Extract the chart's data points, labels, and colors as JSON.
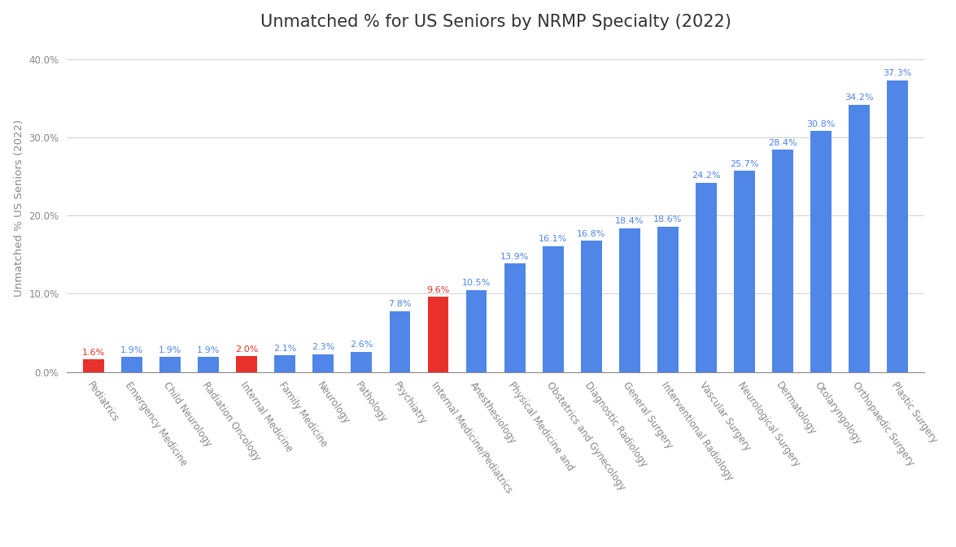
{
  "title": "Unmatched % for US Seniors by NRMP Specialty (2022)",
  "ylabel": "Unmatched % US Seniors (2022)",
  "categories": [
    "Pediatrics",
    "Emergency Medicine",
    "Child Neurology",
    "Radiation Oncology",
    "Internal Medicine",
    "Family Medicine",
    "Neurology",
    "Pathology",
    "Psychiatry",
    "Internal Medicine/Pediatrics",
    "Anesthesiology",
    "Physical Medicine and",
    "Obstetrics and Gynecology",
    "Diagnostic Radiology",
    "General Surgery",
    "Interventional Radiology",
    "Vascular Surgery",
    "Neurological Surgery",
    "Dermatology",
    "Otolaryngology",
    "Orthopaedic Surgery",
    "Plastic Surgery"
  ],
  "values": [
    1.6,
    1.9,
    1.9,
    1.9,
    2.0,
    2.1,
    2.3,
    2.6,
    7.8,
    9.6,
    10.5,
    13.9,
    16.1,
    16.8,
    18.4,
    18.6,
    24.2,
    25.7,
    28.4,
    30.8,
    34.2,
    37.3
  ],
  "bar_colors": [
    "#e8312a",
    "#4f86e8",
    "#4f86e8",
    "#4f86e8",
    "#e8312a",
    "#4f86e8",
    "#4f86e8",
    "#4f86e8",
    "#4f86e8",
    "#e8312a",
    "#4f86e8",
    "#4f86e8",
    "#4f86e8",
    "#4f86e8",
    "#4f86e8",
    "#4f86e8",
    "#4f86e8",
    "#4f86e8",
    "#4f86e8",
    "#4f86e8",
    "#4f86e8",
    "#4f86e8"
  ],
  "label_colors_red": [
    "#e8312a",
    "#4f86e8"
  ],
  "red_indices": [
    0,
    4,
    9
  ],
  "ylim": [
    0,
    42
  ],
  "yticks": [
    0,
    10,
    20,
    30,
    40
  ],
  "ytick_labels": [
    "0.0%",
    "10.0%",
    "20.0%",
    "30.0%",
    "40.0%"
  ],
  "background_color": "#ffffff",
  "grid_color": "#d0d0d0",
  "title_fontsize": 15,
  "label_fontsize": 8,
  "tick_label_fontsize": 8.5,
  "ylabel_fontsize": 9.5,
  "bar_width": 0.55
}
